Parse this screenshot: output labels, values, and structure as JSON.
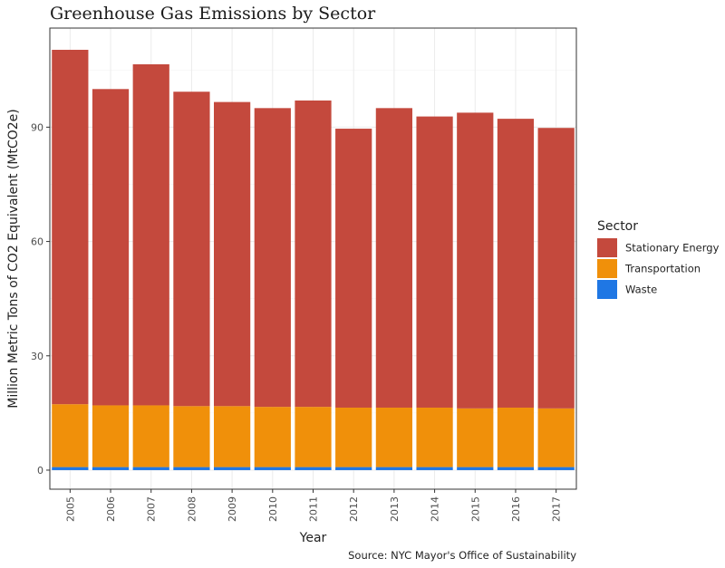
{
  "chart_data": {
    "type": "bar",
    "stacked": true,
    "title": "Greenhouse Gas Emissions by Sector",
    "xlabel": "Year",
    "ylabel": "Million Metric Tons of CO2 Equivalent (MtCO2e)",
    "caption": "Source: NYC Mayor's Office of Sustainability",
    "categories": [
      "2005",
      "2006",
      "2007",
      "2008",
      "2009",
      "2010",
      "2011",
      "2012",
      "2013",
      "2014",
      "2015",
      "2016",
      "2017"
    ],
    "series": [
      {
        "name": "Waste",
        "color": "#1f77e4",
        "values": [
          0.8,
          0.8,
          0.8,
          0.8,
          0.8,
          0.8,
          0.8,
          0.8,
          0.8,
          0.8,
          0.8,
          0.8,
          0.8
        ]
      },
      {
        "name": "Transportation",
        "color": "#f0900a",
        "values": [
          16.5,
          16.2,
          16.2,
          16.0,
          16.0,
          15.8,
          15.8,
          15.6,
          15.6,
          15.6,
          15.4,
          15.6,
          15.4
        ]
      },
      {
        "name": "Stationary Energy",
        "color": "#c4493d",
        "values": [
          93.0,
          83.0,
          89.5,
          82.5,
          79.8,
          78.4,
          80.4,
          73.2,
          78.6,
          76.4,
          77.6,
          75.8,
          73.6
        ]
      }
    ],
    "ylim": [
      -5,
      116
    ],
    "yticks": [
      0,
      30,
      60,
      90
    ],
    "grid": true,
    "legend": {
      "title": "Sector",
      "position": "right",
      "entries": [
        "Stationary Energy",
        "Transportation",
        "Waste"
      ]
    }
  }
}
